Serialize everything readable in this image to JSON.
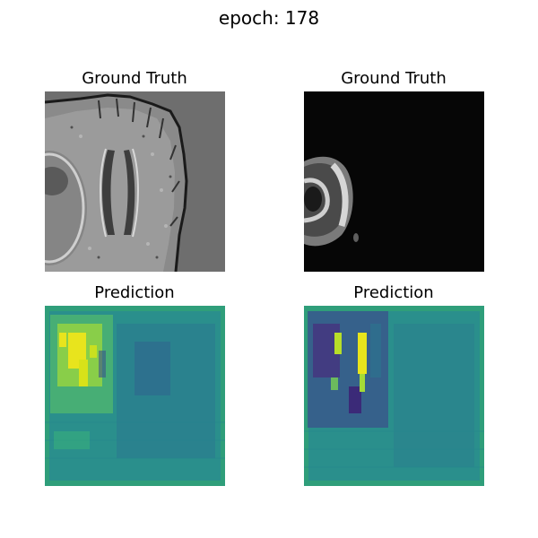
{
  "figure": {
    "suptitle": "epoch: 178"
  },
  "panels": [
    {
      "title": "Ground Truth",
      "colormap": "gray"
    },
    {
      "title": "Ground Truth",
      "colormap": "gray"
    },
    {
      "title": "Prediction",
      "colormap": "viridis"
    },
    {
      "title": "Prediction",
      "colormap": "viridis"
    }
  ],
  "colors": {
    "gt1_background": "#6e6e6e",
    "gt2_background": "#060606",
    "viridis_base": "#2a8f8c",
    "viridis_yellow": "#e8e41d",
    "viridis_purple": "#3b2a78"
  }
}
